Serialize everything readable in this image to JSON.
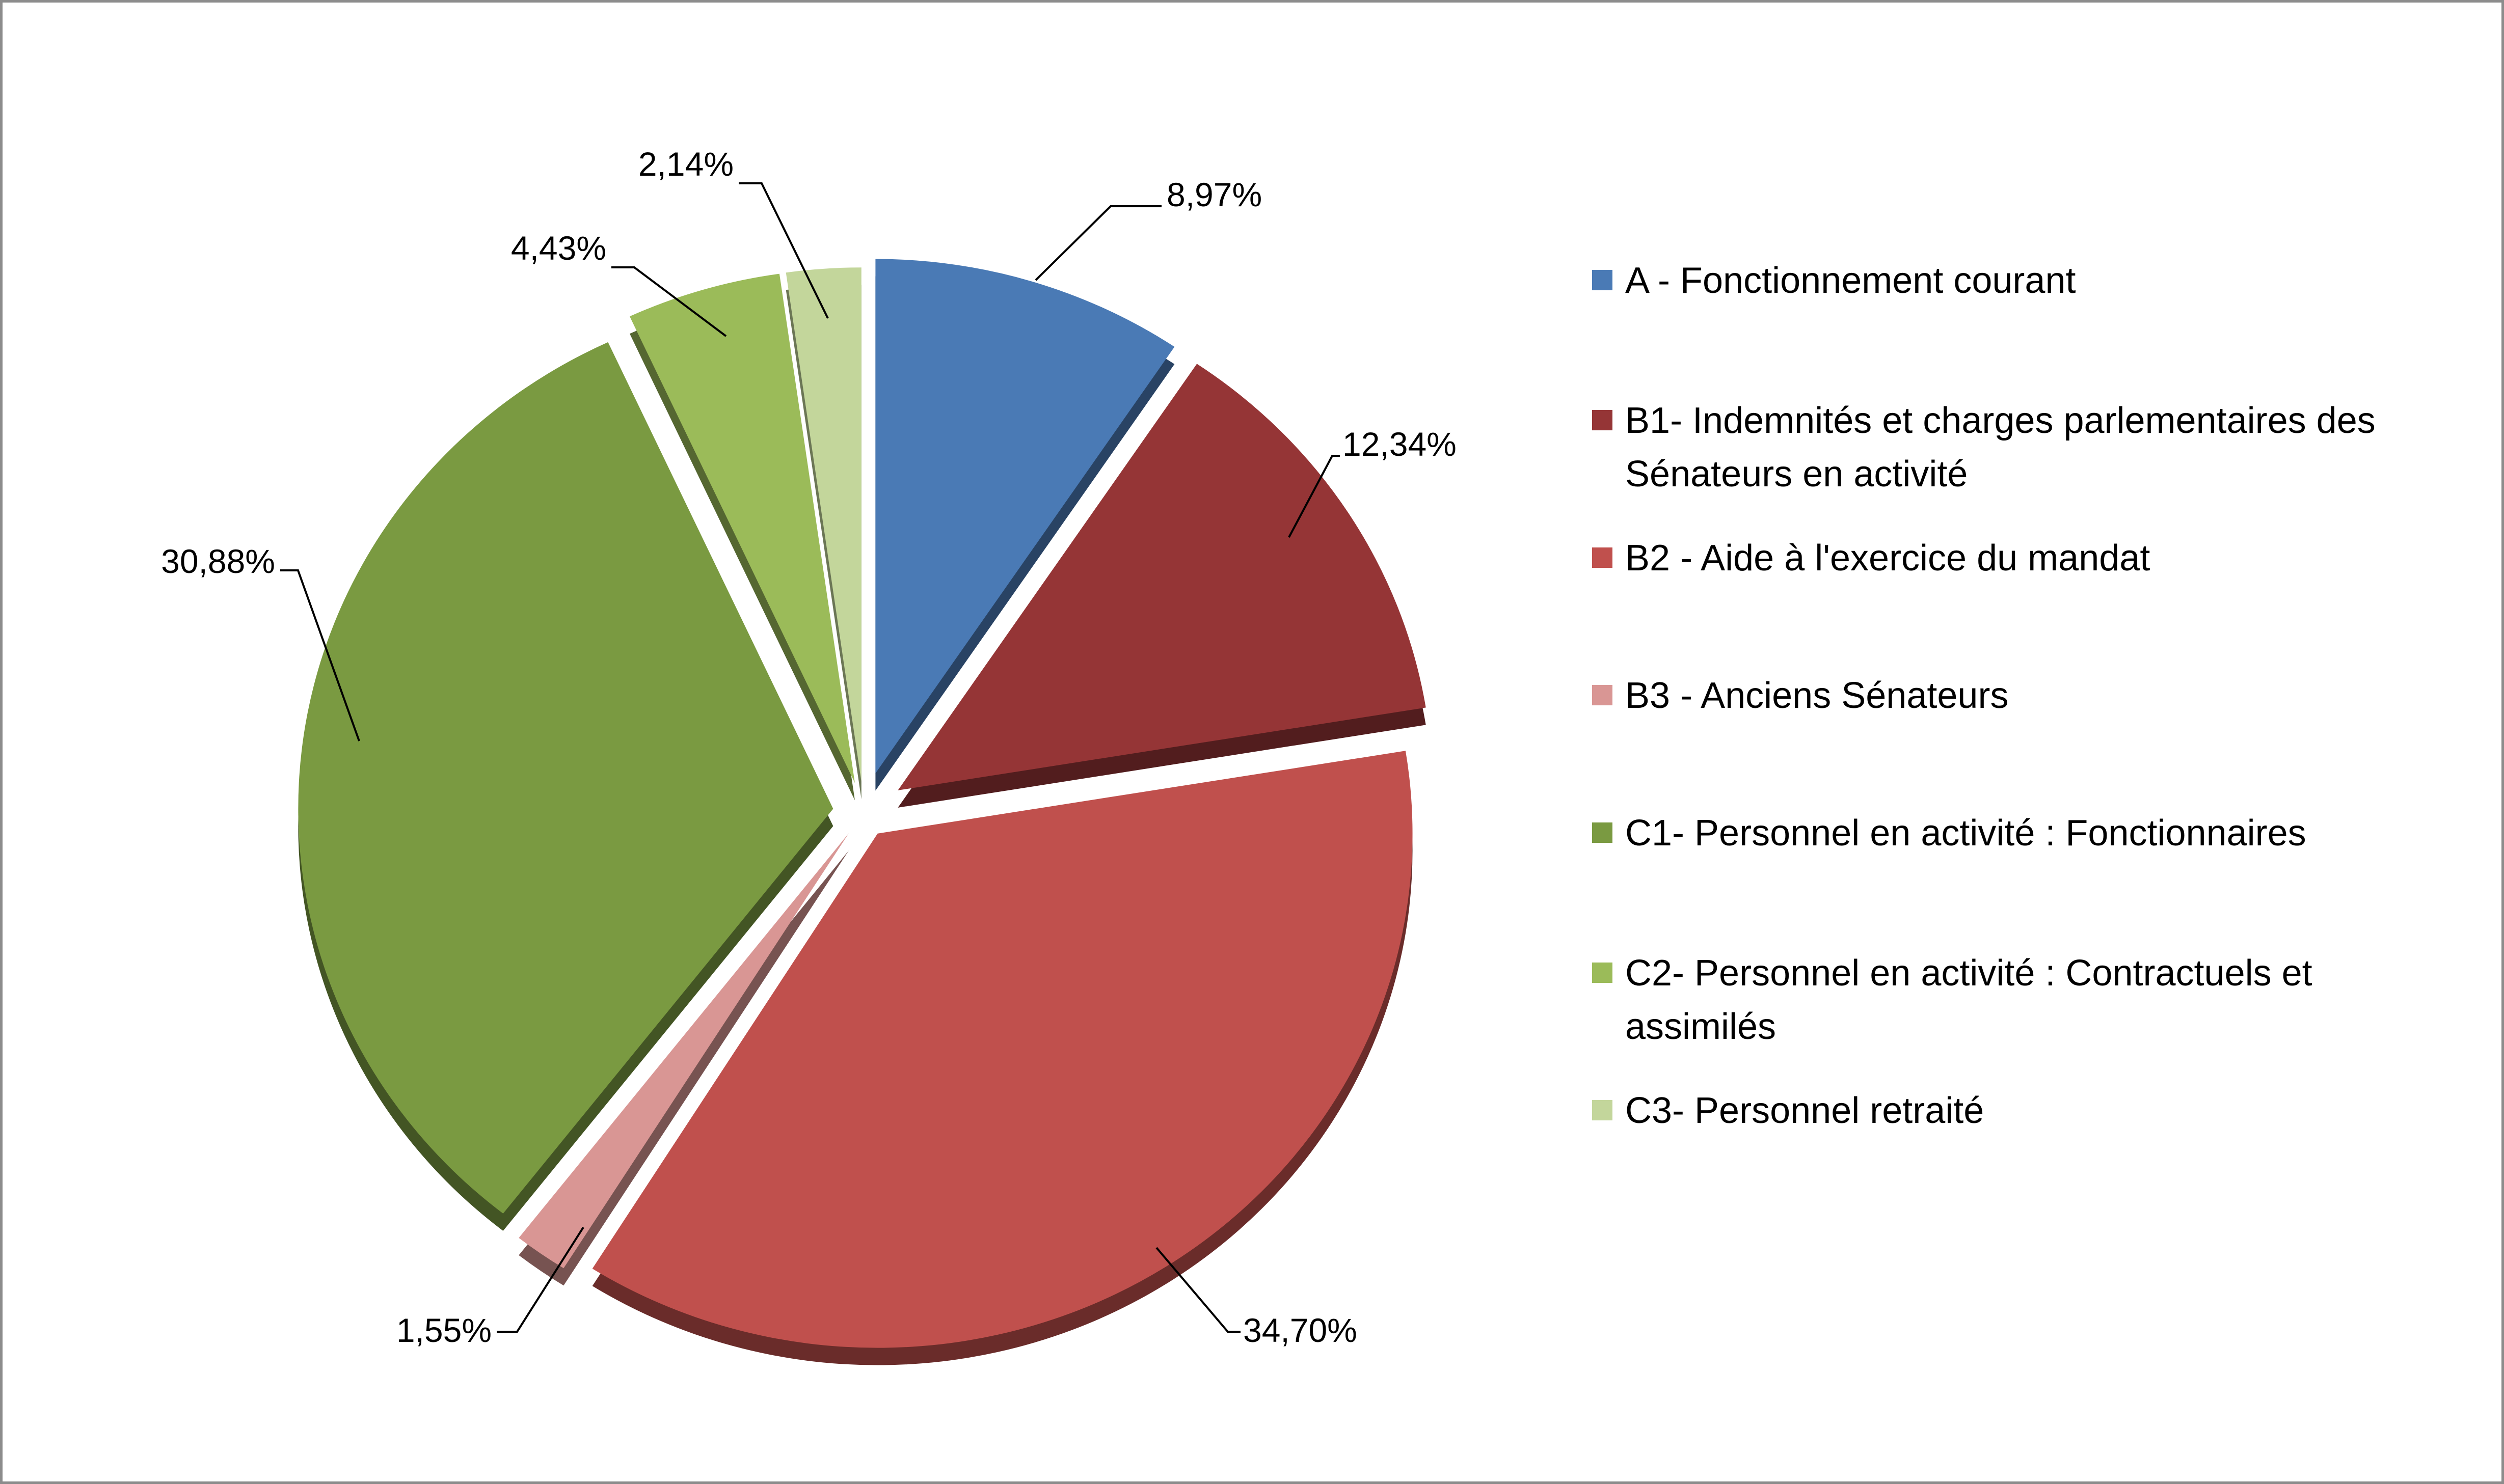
{
  "chart_data": {
    "type": "pie",
    "title": "",
    "legend_position": "right",
    "categories": [
      "A - Fonctionnement courant",
      "B1- Indemnités et charges parlementaires des Sénateurs en activité",
      "B2 - Aide à l'exercice du mandat",
      "B3 - Anciens Sénateurs",
      "C1- Personnel en activité : Fonctionnaires",
      "C2- Personnel en activité : Contractuels et assimilés",
      "C3- Personnel retraité"
    ],
    "values": [
      8.97,
      12.34,
      34.7,
      1.55,
      30.88,
      4.43,
      2.14
    ],
    "value_labels": [
      "8,97%",
      "12,34%",
      "34,70%",
      "1,55%",
      "30,88%",
      "4,43%",
      "2,14%"
    ],
    "colors": [
      "#4a7ab5",
      "#953536",
      "#c0504d",
      "#d99694",
      "#7a9a41",
      "#9bbb59",
      "#c3d69b"
    ],
    "legend": [
      [
        "A - Fonctionnement courant"
      ],
      [
        "B1- Indemnités et charges parlementaires des",
        "Sénateurs en activité"
      ],
      [
        "B2 - Aide à l'exercice du mandat"
      ],
      [
        "B3 - Anciens Sénateurs"
      ],
      [
        "C1- Personnel en activité : Fonctionnaires"
      ],
      [
        "C2- Personnel en activité : Contractuels et",
        "assimilés"
      ],
      [
        "C3- Personnel retraité"
      ]
    ]
  }
}
